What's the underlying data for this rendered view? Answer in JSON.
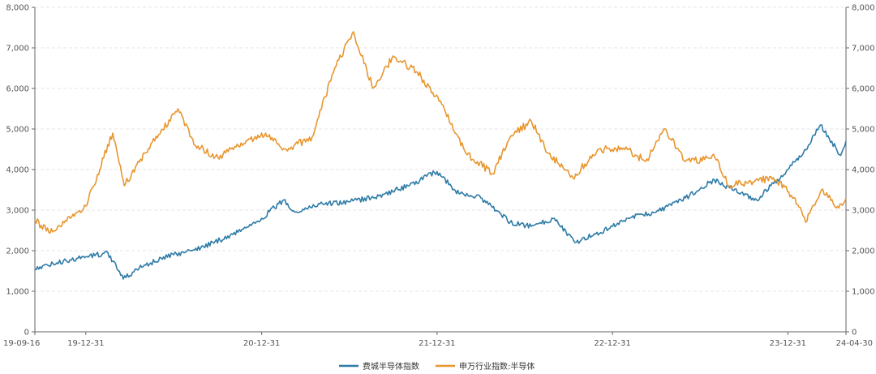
{
  "chart_data": {
    "type": "line",
    "grid": true,
    "legend_position": "bottom-center",
    "y_left": {
      "range": [
        0,
        8000
      ],
      "ticks": [
        "0",
        "1,000",
        "2,000",
        "3,000",
        "4,000",
        "5,000",
        "6,000",
        "7,000",
        "8,000"
      ]
    },
    "y_right": {
      "range": [
        0,
        8000
      ],
      "ticks": [
        "0",
        "1,000",
        "2,000",
        "3,000",
        "4,000",
        "5,000",
        "6,000",
        "7,000",
        "8,000"
      ]
    },
    "x_axis": {
      "range": [
        "2019-09-16",
        "2024-04-30"
      ],
      "tick_labels": [
        "19-09-16",
        "19-12-31",
        "20-12-31",
        "21-12-31",
        "22-12-31",
        "23-12-31",
        "24-04-30"
      ],
      "tick_dates": [
        "2019-09-16",
        "2019-12-31",
        "2020-12-31",
        "2021-12-31",
        "2022-12-31",
        "2023-12-31",
        "2024-04-30"
      ]
    },
    "series": [
      {
        "name": "费城半导体指数",
        "color": "#2e7ba6",
        "x": [
          "2019-09-16",
          "2019-11-01",
          "2019-12-31",
          "2020-02-15",
          "2020-03-18",
          "2020-05-01",
          "2020-07-01",
          "2020-09-01",
          "2020-11-01",
          "2020-12-31",
          "2021-02-15",
          "2021-03-10",
          "2021-05-01",
          "2021-07-01",
          "2021-09-01",
          "2021-11-01",
          "2021-12-31",
          "2022-02-15",
          "2022-04-01",
          "2022-06-01",
          "2022-07-15",
          "2022-09-01",
          "2022-10-14",
          "2022-12-31",
          "2023-02-01",
          "2023-04-01",
          "2023-06-01",
          "2023-07-31",
          "2023-09-01",
          "2023-10-27",
          "2023-12-31",
          "2024-02-01",
          "2024-03-08",
          "2024-04-19",
          "2024-04-30"
        ],
        "values": [
          1550,
          1700,
          1850,
          1950,
          1300,
          1650,
          1900,
          2100,
          2400,
          2800,
          3250,
          2950,
          3150,
          3200,
          3350,
          3600,
          3950,
          3400,
          3300,
          2700,
          2600,
          2800,
          2200,
          2600,
          2800,
          2950,
          3300,
          3750,
          3550,
          3250,
          4000,
          4400,
          5100,
          4350,
          4700
        ]
      },
      {
        "name": "申万行业指数:半导体",
        "color": "#e8962e",
        "x": [
          "2019-09-16",
          "2019-10-15",
          "2019-12-31",
          "2020-02-25",
          "2020-03-20",
          "2020-05-01",
          "2020-07-10",
          "2020-08-15",
          "2020-10-01",
          "2020-12-31",
          "2021-02-20",
          "2021-04-15",
          "2021-06-01",
          "2021-07-10",
          "2021-08-20",
          "2021-10-01",
          "2021-11-20",
          "2022-01-15",
          "2022-03-01",
          "2022-04-26",
          "2022-06-01",
          "2022-07-15",
          "2022-08-20",
          "2022-10-10",
          "2022-12-01",
          "2023-01-31",
          "2023-03-10",
          "2023-04-20",
          "2023-06-01",
          "2023-08-01",
          "2023-09-01",
          "2023-10-20",
          "2023-12-01",
          "2024-01-15",
          "2024-02-06",
          "2024-03-10",
          "2024-04-15",
          "2024-04-30"
        ],
        "values": [
          2750,
          2450,
          3100,
          4900,
          3600,
          4400,
          5500,
          4600,
          4300,
          4900,
          4500,
          4800,
          6500,
          7400,
          6000,
          6800,
          6400,
          5500,
          4400,
          3900,
          4800,
          5200,
          4400,
          3800,
          4500,
          4500,
          4200,
          5000,
          4200,
          4300,
          3600,
          3700,
          3800,
          3300,
          2700,
          3500,
          3050,
          3300
        ]
      }
    ]
  }
}
